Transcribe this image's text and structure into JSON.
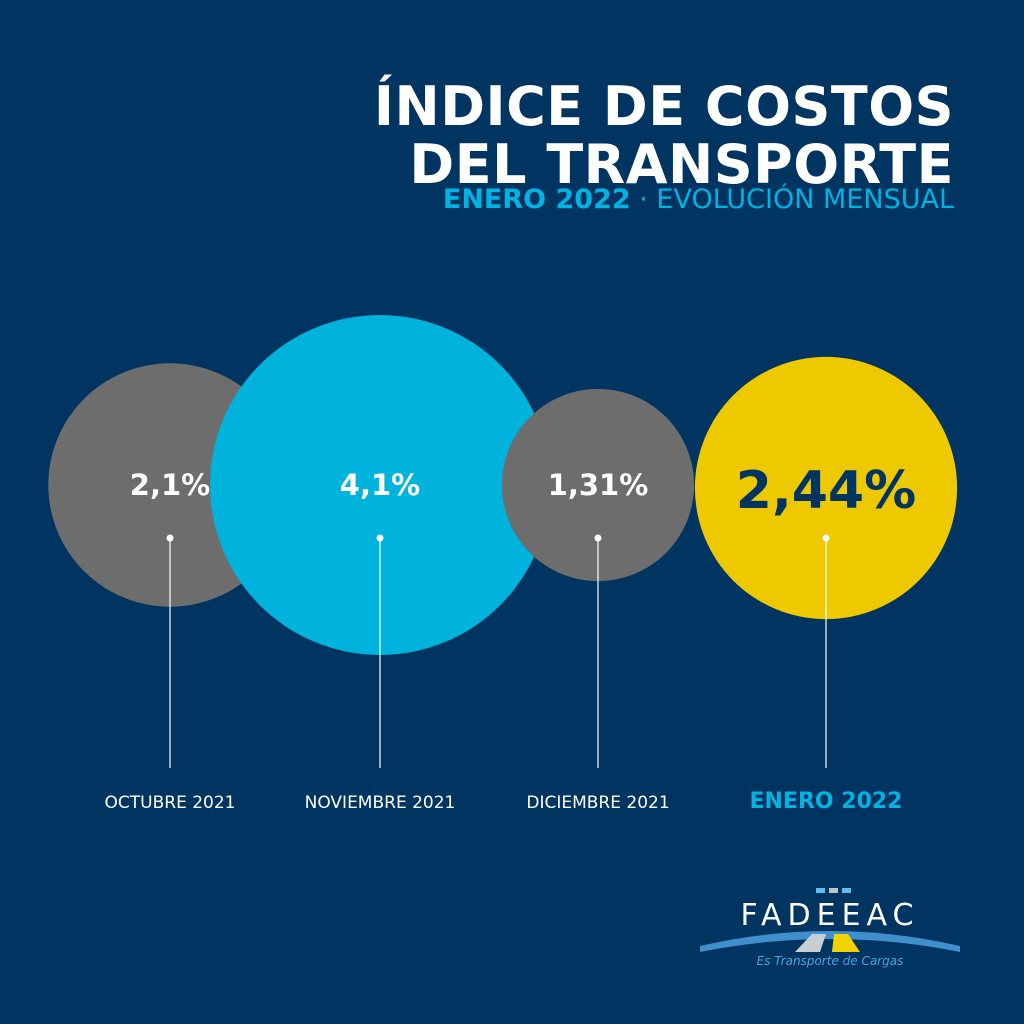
{
  "header": {
    "title_line1": "ÍNDICE DE COSTOS",
    "title_line2": "DEL TRANSPORTE",
    "subtitle_strong": "ENERO 2022",
    "subtitle_rest": " · EVOLUCIÓN MENSUAL"
  },
  "chart_data": {
    "type": "bubble",
    "title": "ÍNDICE DE COSTOS DEL TRANSPORTE",
    "subtitle": "ENERO 2022 · EVOLUCIÓN MENSUAL",
    "categories": [
      "OCTUBRE 2021",
      "NOVIEMBRE 2021",
      "DICIEMBRE 2021",
      "ENERO 2022"
    ],
    "values": [
      2.1,
      4.1,
      1.31,
      2.44
    ],
    "labels": [
      "2,1%",
      "4,1%",
      "1,31%",
      "2,44%"
    ],
    "unit": "%",
    "highlight": "ENERO 2022",
    "colors": [
      "#6d6d6d",
      "#00b3dd",
      "#6d6d6d",
      "#eec900"
    ]
  },
  "logo": {
    "name": "FADEEAC",
    "tagline": "Es Transporte de Cargas"
  },
  "colors": {
    "background": "#003461",
    "accent": "#00b3e3",
    "highlight": "#eec900",
    "gray": "#6d6d6d"
  }
}
